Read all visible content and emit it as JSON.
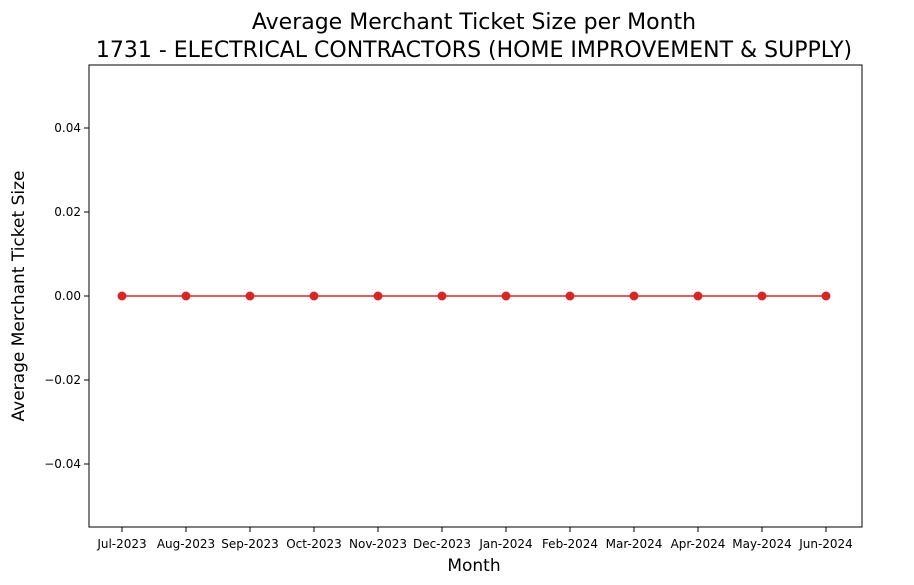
{
  "chart_data": {
    "type": "line",
    "title": "Average Merchant Ticket Size per Month",
    "subtitle": "1731 - ELECTRICAL CONTRACTORS (HOME IMPROVEMENT & SUPPLY)",
    "xlabel": "Month",
    "ylabel": "Average Merchant Ticket Size",
    "categories": [
      "Jul-2023",
      "Aug-2023",
      "Sep-2023",
      "Oct-2023",
      "Nov-2023",
      "Dec-2023",
      "Jan-2024",
      "Feb-2024",
      "Mar-2024",
      "Apr-2024",
      "May-2024",
      "Jun-2024"
    ],
    "series": [
      {
        "values": [
          0,
          0,
          0,
          0,
          0,
          0,
          0,
          0,
          0,
          0,
          0,
          0
        ],
        "color": "#d62728",
        "marker": "circle"
      }
    ],
    "ylim": [
      -0.055,
      0.055
    ],
    "yticks": [
      -0.04,
      -0.02,
      0.0,
      0.02,
      0.04
    ],
    "ytick_labels": [
      "−0.04",
      "−0.02",
      "0.00",
      "0.02",
      "0.04"
    ],
    "grid": false,
    "legend": "none"
  }
}
